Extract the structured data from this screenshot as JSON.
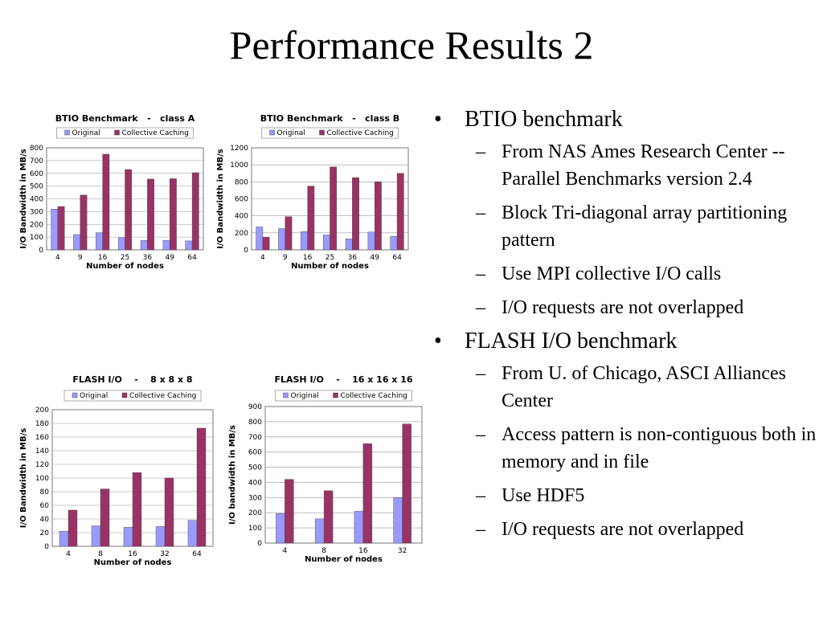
{
  "slide": {
    "title": "Performance Results 2"
  },
  "bullets": [
    {
      "text": "BTIO benchmark",
      "subs": [
        "From NAS Ames Research Center -- Parallel Benchmarks version 2.4",
        "Block Tri-diagonal array partitioning pattern",
        "Use MPI collective I/O calls",
        "I/O requests are not overlapped"
      ]
    },
    {
      "text": "FLASH I/O benchmark",
      "subs": [
        "From U. of Chicago, ASCI Alliances Center",
        "Access pattern is non-contiguous both in memory and in file",
        "Use HDF5",
        "I/O requests are not overlapped"
      ]
    }
  ],
  "bullet_symbol": "•",
  "dash_symbol": "–",
  "colors": {
    "original": "#9999ff",
    "collective": "#993366",
    "grid": "#999999"
  },
  "chart_data": [
    {
      "type": "bar",
      "title": "BTIO Benchmark   -   class A",
      "categories": [
        "4",
        "9",
        "16",
        "25",
        "36",
        "49",
        "64"
      ],
      "series": [
        {
          "name": "Original",
          "values": [
            320,
            120,
            135,
            95,
            75,
            75,
            70
          ]
        },
        {
          "name": "Collective Caching",
          "values": [
            340,
            430,
            750,
            630,
            555,
            558,
            605
          ]
        }
      ],
      "xlabel": "Number of nodes",
      "ylabel": "I/O Bandwidth in MB/s",
      "ylim": [
        0,
        800
      ],
      "yticks": [
        "0",
        "100",
        "200",
        "300",
        "400",
        "500",
        "600",
        "700",
        "800"
      ],
      "legend": "top",
      "grid": true
    },
    {
      "type": "bar",
      "title": "BTIO Benchmark   -   class B",
      "categories": [
        "4",
        "9",
        "16",
        "25",
        "36",
        "49",
        "64"
      ],
      "series": [
        {
          "name": "Original",
          "values": [
            270,
            250,
            215,
            175,
            130,
            210,
            160
          ]
        },
        {
          "name": "Collective Caching",
          "values": [
            150,
            390,
            750,
            975,
            850,
            800,
            900
          ]
        }
      ],
      "xlabel": "Number of nodes",
      "ylabel": "I/O Bandwidth in MB/s",
      "ylim": [
        0,
        1200
      ],
      "yticks": [
        "0",
        "200",
        "400",
        "600",
        "800",
        "1000",
        "1200"
      ],
      "legend": "top",
      "grid": true
    },
    {
      "type": "bar",
      "title": "FLASH I/O    -    8 x 8 x 8",
      "categories": [
        "4",
        "8",
        "16",
        "32",
        "64"
      ],
      "series": [
        {
          "name": "Original",
          "values": [
            22,
            30,
            28,
            29,
            38
          ]
        },
        {
          "name": "Collective Caching",
          "values": [
            53,
            84,
            108,
            100,
            173
          ]
        }
      ],
      "xlabel": "Number of nodes",
      "ylabel": "I/O Bandwidth in MB/s",
      "ylim": [
        0,
        200
      ],
      "yticks": [
        "0",
        "20",
        "40",
        "60",
        "80",
        "100",
        "120",
        "140",
        "160",
        "180",
        "200"
      ],
      "legend": "top",
      "grid": true
    },
    {
      "type": "bar",
      "title": "FLASH I/O    -    16 x 16 x 16",
      "categories": [
        "4",
        "8",
        "16",
        "32"
      ],
      "series": [
        {
          "name": "Original",
          "values": [
            195,
            160,
            210,
            300
          ]
        },
        {
          "name": "Collective Caching",
          "values": [
            420,
            345,
            655,
            785
          ]
        }
      ],
      "xlabel": "Number of nodes",
      "ylabel": "I/O bandwidth in MB/s",
      "ylim": [
        0,
        900
      ],
      "yticks": [
        "0",
        "100",
        "200",
        "300",
        "400",
        "500",
        "600",
        "700",
        "800",
        "900"
      ],
      "legend": "top",
      "grid": true
    }
  ]
}
